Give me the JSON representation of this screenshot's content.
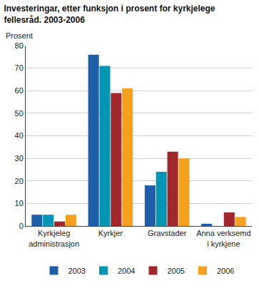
{
  "chart_data": {
    "type": "bar",
    "title": "Investeringar, etter funksjon i prosent for kyrkjelege fellesråd. 2003-2006",
    "y_label": "Prosent",
    "categories": [
      "Kyrkjeleg administrasjon",
      "Kyrkjer",
      "Gravstader",
      "Anna verksemd i kyrkjene"
    ],
    "series": [
      {
        "name": "2003",
        "color": "#1f5fa8",
        "values": [
          5,
          76,
          18,
          1
        ]
      },
      {
        "name": "2004",
        "color": "#0096b4",
        "values": [
          5,
          71,
          24,
          0
        ]
      },
      {
        "name": "2005",
        "color": "#a0282d",
        "values": [
          2,
          59,
          33,
          6
        ]
      },
      {
        "name": "2006",
        "color": "#f5a01e",
        "values": [
          5,
          61,
          30,
          4
        ]
      }
    ],
    "ylim": [
      0,
      80
    ],
    "yticks": [
      0,
      10,
      20,
      30,
      40,
      50,
      60,
      70,
      80
    ],
    "grid": true,
    "legend": "bottom"
  }
}
